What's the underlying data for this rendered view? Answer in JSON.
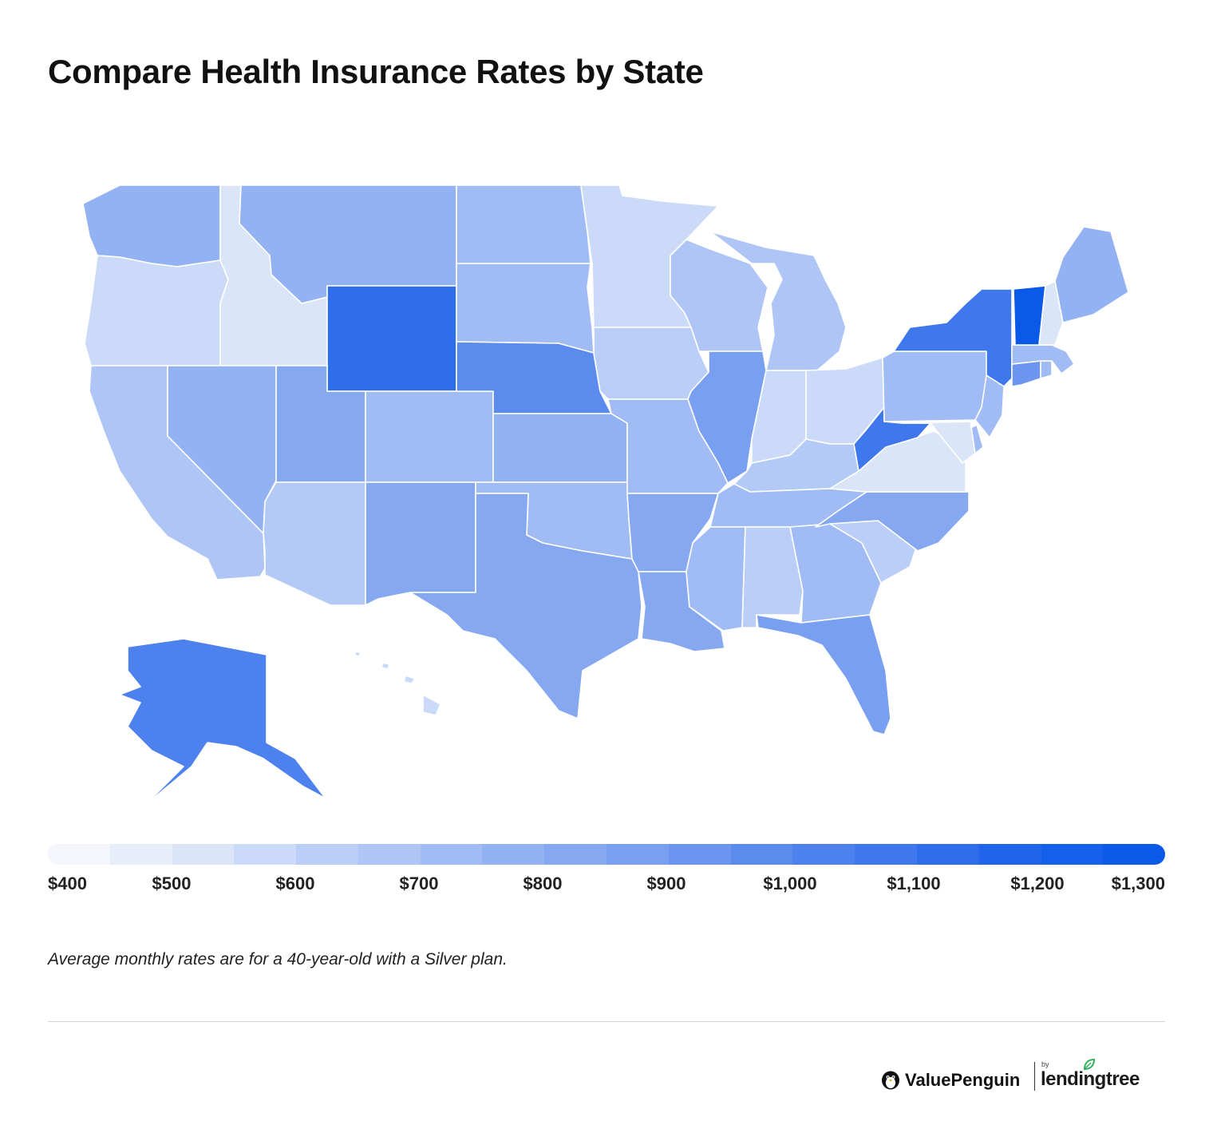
{
  "title": "Compare Health Insurance Rates by State",
  "legend": {
    "labels": [
      "$400",
      "$500",
      "$600",
      "$700",
      "$800",
      "$900",
      "$1,000",
      "$1,100",
      "$1,200",
      "$1,300"
    ],
    "colors": [
      "#f4f6fb",
      "#e8eef9",
      "#dbe5f8",
      "#cbdaf8",
      "#bacef7",
      "#aec5f5",
      "#a1bcf4",
      "#93b2f2",
      "#85a8f0",
      "#799ff0",
      "#6b95ee",
      "#5c8bee",
      "#4d81ed",
      "#3e78ec",
      "#2f6eeb",
      "#2064e9",
      "#1560ea",
      "#0a59e9"
    ],
    "range": [
      400,
      1300
    ]
  },
  "note": "Average monthly rates are for a 40-year-old with a Silver plan.",
  "brand": {
    "primary": "ValuePenguin",
    "by": "by",
    "secondary": "lendingtree"
  },
  "states": [
    {
      "id": "WA",
      "color": "#93b2f2"
    },
    {
      "id": "OR",
      "color": "#cbdaf8"
    },
    {
      "id": "CA",
      "color": "#aec5f5"
    },
    {
      "id": "ID",
      "color": "#dbe5f8"
    },
    {
      "id": "NV",
      "color": "#93b2f2"
    },
    {
      "id": "MT",
      "color": "#93b2f2"
    },
    {
      "id": "WY",
      "color": "#2f6eeb"
    },
    {
      "id": "UT",
      "color": "#85a8f0"
    },
    {
      "id": "AZ",
      "color": "#b3c9f6"
    },
    {
      "id": "CO",
      "color": "#a1bcf4"
    },
    {
      "id": "NM",
      "color": "#85a8f0"
    },
    {
      "id": "ND",
      "color": "#a1bcf4"
    },
    {
      "id": "SD",
      "color": "#a1bcf4"
    },
    {
      "id": "NE",
      "color": "#5c8bee"
    },
    {
      "id": "KS",
      "color": "#93b2f2"
    },
    {
      "id": "OK",
      "color": "#a1bcf4"
    },
    {
      "id": "TX",
      "color": "#85a8f0"
    },
    {
      "id": "MN",
      "color": "#cbdaf8"
    },
    {
      "id": "IA",
      "color": "#bacef7"
    },
    {
      "id": "MO",
      "color": "#a1bcf4"
    },
    {
      "id": "AR",
      "color": "#85a8f0"
    },
    {
      "id": "LA",
      "color": "#85a8f0"
    },
    {
      "id": "WI",
      "color": "#aec5f5"
    },
    {
      "id": "IL",
      "color": "#799ff0"
    },
    {
      "id": "MI",
      "color": "#aec5f5"
    },
    {
      "id": "IN",
      "color": "#cbdaf8"
    },
    {
      "id": "OH",
      "color": "#cbdaf8"
    },
    {
      "id": "KY",
      "color": "#b3c9f6"
    },
    {
      "id": "TN",
      "color": "#a1bcf4"
    },
    {
      "id": "MS",
      "color": "#a1bcf4"
    },
    {
      "id": "AL",
      "color": "#bacef7"
    },
    {
      "id": "GA",
      "color": "#a1bcf4"
    },
    {
      "id": "FL",
      "color": "#799ff0"
    },
    {
      "id": "SC",
      "color": "#bacef7"
    },
    {
      "id": "NC",
      "color": "#85a8f0"
    },
    {
      "id": "VA",
      "color": "#dbe5f8"
    },
    {
      "id": "WV",
      "color": "#3e78ec"
    },
    {
      "id": "PA",
      "color": "#a1bcf4"
    },
    {
      "id": "NY",
      "color": "#3e78ec"
    },
    {
      "id": "NJ",
      "color": "#a1bcf4"
    },
    {
      "id": "DE",
      "color": "#a1bcf4"
    },
    {
      "id": "MD",
      "color": "#dbe5f8"
    },
    {
      "id": "CT",
      "color": "#6b95ee"
    },
    {
      "id": "RI",
      "color": "#a1bcf4"
    },
    {
      "id": "MA",
      "color": "#a1bcf4"
    },
    {
      "id": "VT",
      "color": "#0a59e9"
    },
    {
      "id": "NH",
      "color": "#dbe5f8"
    },
    {
      "id": "ME",
      "color": "#93b2f2"
    },
    {
      "id": "AK",
      "color": "#4d81ed"
    },
    {
      "id": "HI",
      "color": "#cbdaf8"
    }
  ]
}
